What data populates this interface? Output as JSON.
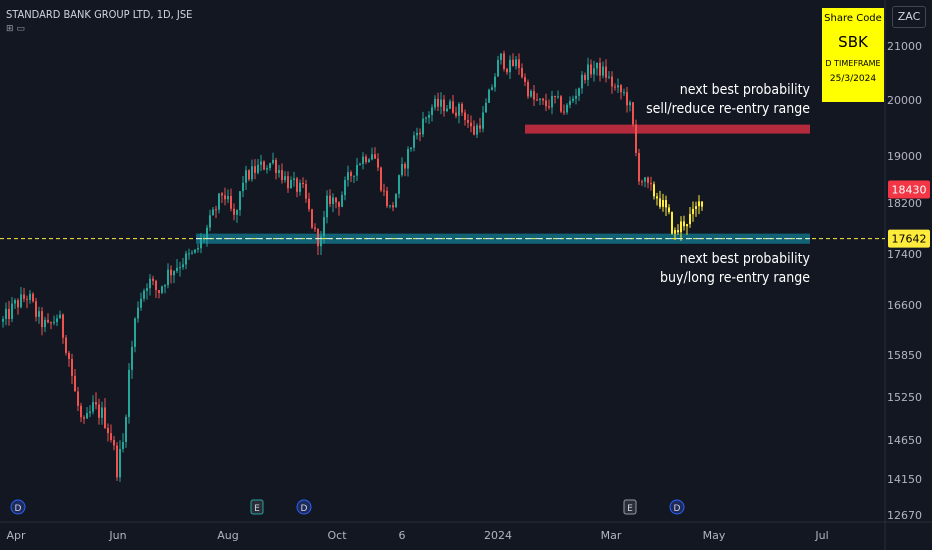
{
  "header": {
    "symbol": "STANDARD BANK GROUP LTD, 1D, JSE",
    "currency": "ZAC"
  },
  "infobox": {
    "line1": "Share Code",
    "line2": "SBK",
    "line3": "D TIMEFRAME",
    "line4": "25/3/2024"
  },
  "annotations": {
    "sell_line1": "next best probability",
    "sell_line2": "sell/reduce re-entry range",
    "buy_line1": "next best probability",
    "buy_line2": "buy/long re-entry range"
  },
  "colors": {
    "background": "#131722",
    "up": "#26a69a",
    "down": "#ef5350",
    "highlight": "#ffeb3b",
    "sell_zone": "#b22a3c",
    "buy_zone": "#116275",
    "last_price_bg": "#f23645",
    "ref_price_bg": "#ffeb3b"
  },
  "chart_data": {
    "type": "candlestick",
    "title": "STANDARD BANK GROUP LTD, 1D, JSE",
    "y_ticks": [
      12670,
      14150,
      14650,
      15250,
      15850,
      16600,
      17400,
      18200,
      19000,
      20000,
      21000
    ],
    "x_ticks": [
      "Apr",
      "Jun",
      "Aug",
      "Oct",
      "6",
      "2024",
      "Mar",
      "May",
      "Jul"
    ],
    "last_price": 18430,
    "reference_price": 17642,
    "sell_zone": [
      19400,
      19560
    ],
    "buy_zone": [
      17560,
      17720
    ],
    "price_path": [
      [
        0,
        16350
      ],
      [
        12,
        16600
      ],
      [
        25,
        16750
      ],
      [
        35,
        16400
      ],
      [
        45,
        16250
      ],
      [
        55,
        16450
      ],
      [
        65,
        15900
      ],
      [
        72,
        15300
      ],
      [
        80,
        14800
      ],
      [
        90,
        15100
      ],
      [
        100,
        15000
      ],
      [
        108,
        14700
      ],
      [
        114,
        14300
      ],
      [
        120,
        14600
      ],
      [
        126,
        15600
      ],
      [
        134,
        16600
      ],
      [
        145,
        17000
      ],
      [
        155,
        16800
      ],
      [
        165,
        17100
      ],
      [
        180,
        17300
      ],
      [
        192,
        17400
      ],
      [
        200,
        17650
      ],
      [
        210,
        18000
      ],
      [
        220,
        18400
      ],
      [
        232,
        17900
      ],
      [
        240,
        18600
      ],
      [
        255,
        18800
      ],
      [
        270,
        18900
      ],
      [
        285,
        18550
      ],
      [
        300,
        18400
      ],
      [
        312,
        17700
      ],
      [
        318,
        17600
      ],
      [
        325,
        18300
      ],
      [
        335,
        18200
      ],
      [
        345,
        18600
      ],
      [
        355,
        18900
      ],
      [
        370,
        19100
      ],
      [
        380,
        18400
      ],
      [
        388,
        18050
      ],
      [
        398,
        18700
      ],
      [
        410,
        19300
      ],
      [
        420,
        19600
      ],
      [
        430,
        19900
      ],
      [
        445,
        19900
      ],
      [
        460,
        19800
      ],
      [
        470,
        19400
      ],
      [
        480,
        19700
      ],
      [
        488,
        20200
      ],
      [
        497,
        20800
      ],
      [
        505,
        20600
      ],
      [
        515,
        20700
      ],
      [
        522,
        20300
      ],
      [
        530,
        20000
      ],
      [
        542,
        19900
      ],
      [
        552,
        20000
      ],
      [
        562,
        19800
      ],
      [
        572,
        20100
      ],
      [
        582,
        20500
      ],
      [
        592,
        20600
      ],
      [
        602,
        20500
      ],
      [
        612,
        20200
      ],
      [
        622,
        20100
      ],
      [
        628,
        19800
      ],
      [
        632,
        19200
      ],
      [
        635,
        18700
      ],
      [
        645,
        18450
      ],
      [
        655,
        18300
      ],
      [
        665,
        18000
      ],
      [
        672,
        17700
      ],
      [
        680,
        17900
      ],
      [
        690,
        18000
      ],
      [
        700,
        18300
      ]
    ],
    "events": [
      {
        "label": "D"
      },
      {
        "label": "E"
      },
      {
        "label": "D"
      },
      {
        "label": "E"
      },
      {
        "label": "D"
      }
    ],
    "legend": "none",
    "grid": false
  }
}
